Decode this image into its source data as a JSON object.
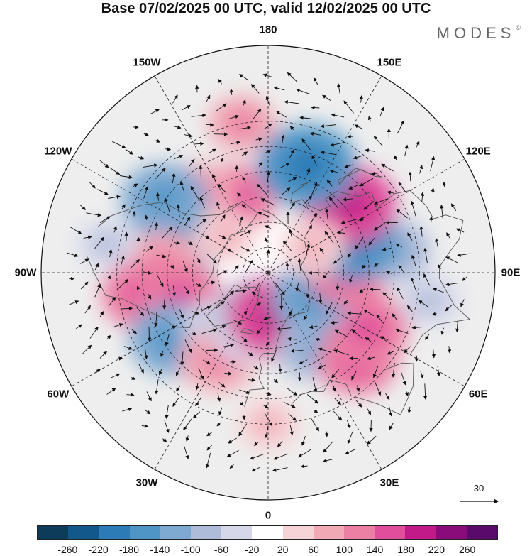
{
  "title": "Base 07/02/2025 00 UTC, valid 12/02/2025 00 UTC",
  "brand": "MODES",
  "brand_mark": "©",
  "longitude_labels": [
    {
      "text": "180",
      "lon": 180
    },
    {
      "text": "150E",
      "lon": 150
    },
    {
      "text": "120E",
      "lon": 120
    },
    {
      "text": "90E",
      "lon": 90
    },
    {
      "text": "60E",
      "lon": 60
    },
    {
      "text": "30E",
      "lon": 30
    },
    {
      "text": "0",
      "lon": 0
    },
    {
      "text": "30W",
      "lon": -30
    },
    {
      "text": "60W",
      "lon": -60
    },
    {
      "text": "90W",
      "lon": -90
    },
    {
      "text": "120W",
      "lon": -120
    },
    {
      "text": "150W",
      "lon": -150
    }
  ],
  "wind_reference": {
    "label": "30"
  },
  "colorbar": {
    "ticks": [
      "-260",
      "-220",
      "-180",
      "-140",
      "-100",
      "-60",
      "-20",
      "20",
      "60",
      "100",
      "140",
      "180",
      "220",
      "260"
    ],
    "colors": [
      "#0d3b5a",
      "#12588b",
      "#2c7bb6",
      "#4f96c7",
      "#7ea9d1",
      "#aebbd9",
      "#d6d8ea",
      "#ffffff",
      "#f6d3d6",
      "#f1a9b6",
      "#ec7fa4",
      "#e04e9c",
      "#c31a8a",
      "#8a0c7a",
      "#5a0a6b"
    ]
  },
  "colors": {
    "land_outline": "#555555",
    "grid": "#222222",
    "neutral_fill": "#eeeeee"
  },
  "anomaly_cells": [
    {
      "lon": -155,
      "lat": 58,
      "value": 110
    },
    {
      "lon": -140,
      "lat": 48,
      "value": 60
    },
    {
      "lon": -125,
      "lat": 40,
      "value": -130
    },
    {
      "lon": -110,
      "lat": 53,
      "value": -120
    },
    {
      "lon": -95,
      "lat": 48,
      "value": 90
    },
    {
      "lon": -80,
      "lat": 40,
      "value": 120
    },
    {
      "lon": -75,
      "lat": 54,
      "value": 110
    },
    {
      "lon": -55,
      "lat": 44,
      "value": -130
    },
    {
      "lon": -45,
      "lat": 60,
      "value": -50
    },
    {
      "lon": -30,
      "lat": 50,
      "value": 90
    },
    {
      "lon": -20,
      "lat": 64,
      "value": -60
    },
    {
      "lon": -15,
      "lat": 75,
      "value": -100
    },
    {
      "lon": 10,
      "lat": 72,
      "value": 160
    },
    {
      "lon": 30,
      "lat": 55,
      "value": -80
    },
    {
      "lon": 45,
      "lat": 40,
      "value": 100
    },
    {
      "lon": 60,
      "lat": 45,
      "value": 120
    },
    {
      "lon": 60,
      "lat": 70,
      "value": -110
    },
    {
      "lon": 90,
      "lat": 58,
      "value": 110
    },
    {
      "lon": 100,
      "lat": 40,
      "value": -90
    },
    {
      "lon": 110,
      "lat": 55,
      "value": -150
    },
    {
      "lon": 130,
      "lat": 48,
      "value": 150
    },
    {
      "lon": 120,
      "lat": 70,
      "value": 50
    },
    {
      "lon": 160,
      "lat": 45,
      "value": -170
    },
    {
      "lon": -170,
      "lat": 30,
      "value": 60
    },
    {
      "lon": -130,
      "lat": 68,
      "value": 40
    },
    {
      "lon": -100,
      "lat": 25,
      "value": -30
    },
    {
      "lon": 0,
      "lat": 30,
      "value": 40
    },
    {
      "lon": 80,
      "lat": 25,
      "value": -40
    }
  ]
}
